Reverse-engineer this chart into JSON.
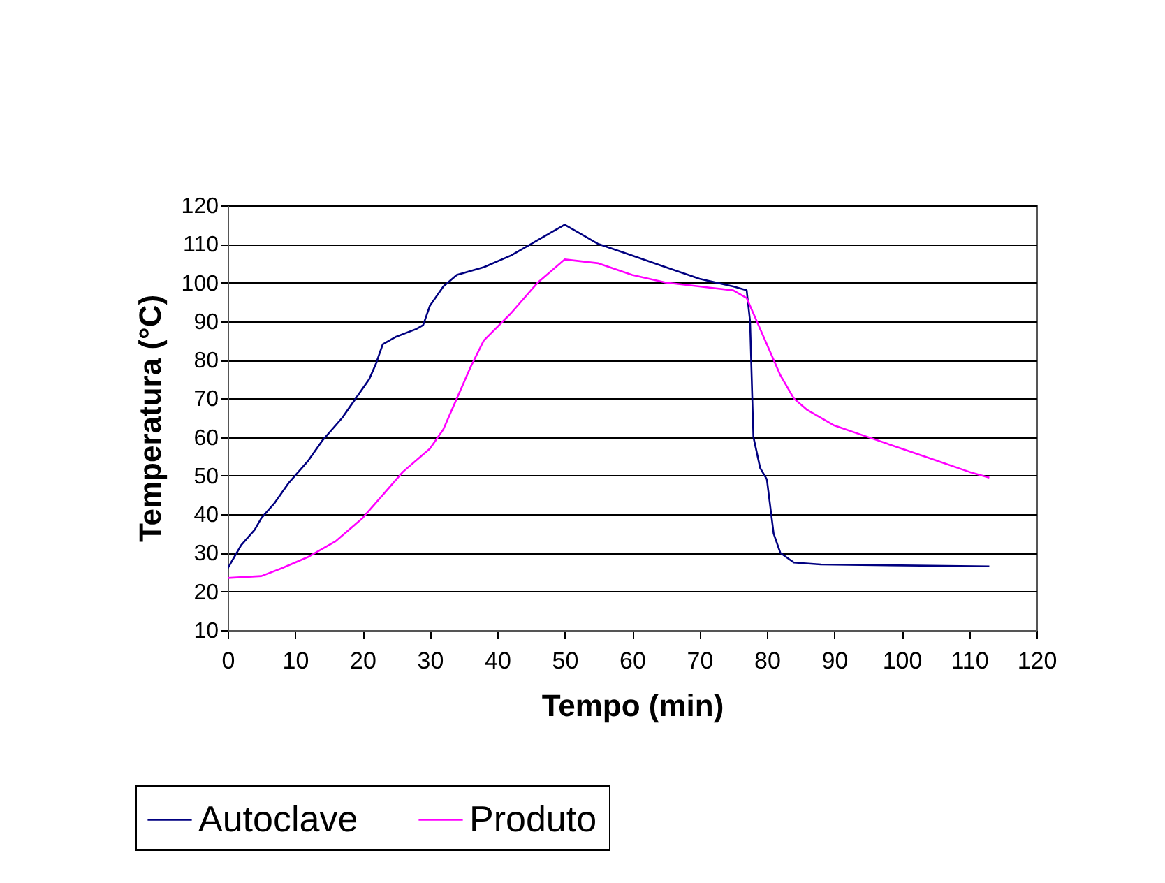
{
  "chart_data": {
    "type": "line",
    "xlabel": "Tempo (min)",
    "ylabel": "Temperatura (°C)",
    "xlim": [
      0,
      120
    ],
    "xticks": [
      0,
      10,
      20,
      30,
      40,
      50,
      60,
      70,
      80,
      90,
      100,
      110,
      120
    ],
    "ylim": [
      10,
      120
    ],
    "yticks": [
      10,
      20,
      30,
      40,
      50,
      60,
      70,
      80,
      90,
      100,
      110,
      120
    ],
    "grid": "y",
    "legend": "bottom",
    "series": [
      {
        "name": "Autoclave",
        "color": "#000080",
        "x": [
          0,
          1,
          2,
          4,
          5,
          7,
          9,
          12,
          14,
          17,
          19,
          21,
          22,
          23,
          25,
          28,
          29,
          30,
          32,
          34,
          38,
          42,
          45,
          48,
          50,
          52,
          55,
          60,
          65,
          70,
          75,
          77,
          77.5,
          78,
          79,
          80,
          81,
          82,
          84,
          88,
          113
        ],
        "values": [
          26,
          29,
          32,
          36,
          39,
          43,
          48,
          54,
          59,
          65,
          70,
          75,
          79,
          84,
          86,
          88,
          89,
          94,
          99,
          102,
          104,
          107,
          110,
          113,
          115,
          113,
          110,
          107,
          104,
          101,
          99,
          98,
          90,
          60,
          52,
          49,
          35,
          30,
          27.5,
          27,
          26.5
        ]
      },
      {
        "name": "Produto",
        "color": "#ff00ff",
        "x": [
          0,
          5,
          8,
          12,
          16,
          20,
          23,
          26,
          30,
          32,
          34,
          36,
          38,
          42,
          46,
          50,
          55,
          60,
          65,
          70,
          75,
          77,
          78,
          80,
          82,
          84,
          86,
          90,
          95,
          100,
          105,
          110,
          113
        ],
        "values": [
          23.5,
          24,
          26,
          29,
          33,
          39,
          45,
          51,
          57,
          62,
          70,
          78,
          85,
          92,
          100,
          106,
          105,
          102,
          100,
          99,
          98,
          96,
          92,
          84,
          76,
          70,
          67,
          63,
          60,
          57,
          54,
          51,
          49.5
        ]
      }
    ]
  }
}
